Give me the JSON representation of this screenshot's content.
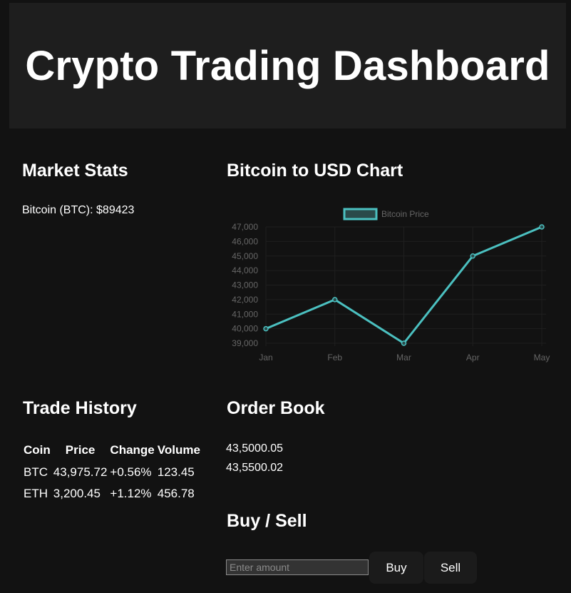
{
  "header": {
    "title": "Crypto Trading Dashboard"
  },
  "market_stats": {
    "title": "Market Stats",
    "btc_line": "Bitcoin (BTC): $89423"
  },
  "chart_section": {
    "title": "Bitcoin to USD Chart"
  },
  "chart_data": {
    "type": "line",
    "categories": [
      "Jan",
      "Feb",
      "Mar",
      "Apr",
      "May"
    ],
    "series": [
      {
        "name": "Bitcoin Price",
        "values": [
          40000,
          42000,
          39000,
          45000,
          47000
        ],
        "color": "#4bc0c0"
      }
    ],
    "yticks": [
      39000,
      40000,
      41000,
      42000,
      43000,
      44000,
      45000,
      46000,
      47000
    ],
    "ytick_labels": [
      "39,000",
      "40,000",
      "41,000",
      "42,000",
      "43,000",
      "44,000",
      "45,000",
      "46,000",
      "47,000"
    ],
    "ylim": [
      39000,
      47000
    ],
    "legend_position": "top",
    "grid": true
  },
  "trade_history": {
    "title": "Trade History",
    "columns": [
      "Coin",
      "Price",
      "Change",
      "Volume"
    ],
    "rows": [
      [
        "BTC",
        "43,975.72",
        "+0.56%",
        "123.45"
      ],
      [
        "ETH",
        "3,200.45",
        "+1.12%",
        "456.78"
      ]
    ]
  },
  "order_book": {
    "title": "Order Book",
    "entries": [
      "43,5000.05",
      "43,5500.02"
    ]
  },
  "buy_sell": {
    "title": "Buy / Sell",
    "amount_placeholder": "Enter amount",
    "buy_label": "Buy",
    "sell_label": "Sell"
  }
}
